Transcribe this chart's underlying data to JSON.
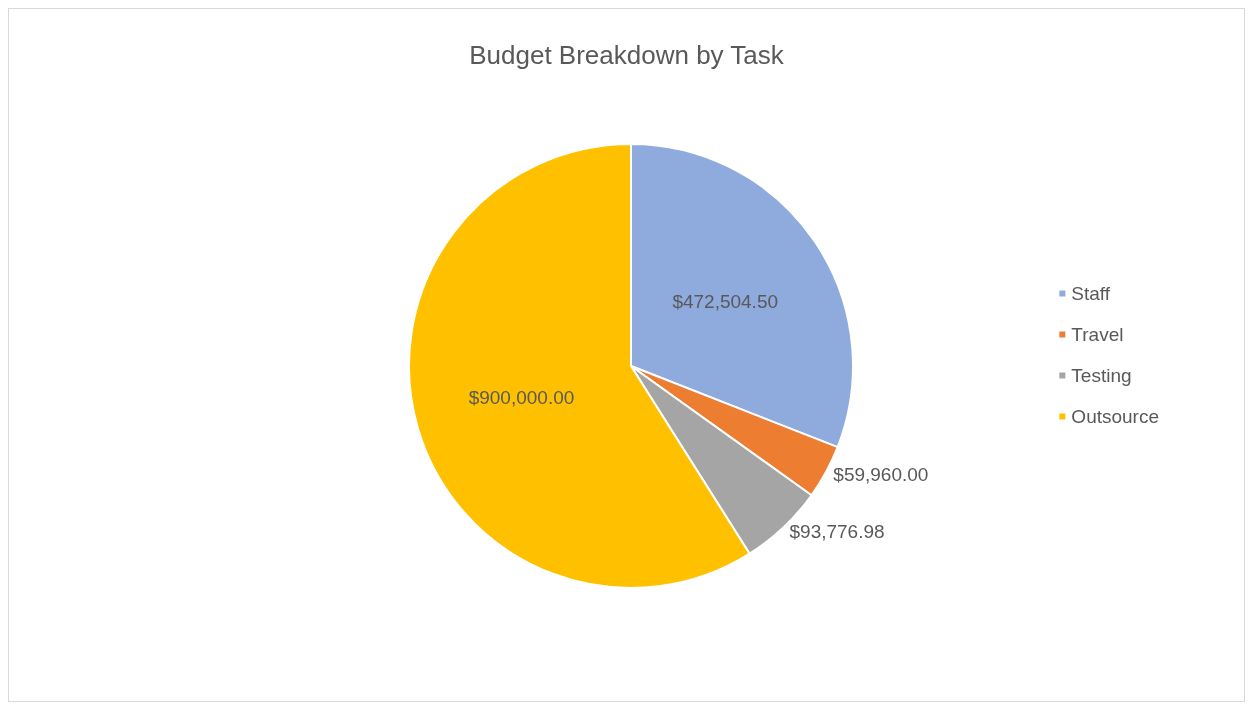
{
  "chart_data": {
    "type": "pie",
    "title": "Budget Breakdown by Task",
    "categories": [
      "Staff",
      "Travel",
      "Testing",
      "Outsource"
    ],
    "values": [
      472504.5,
      59960.0,
      93776.98,
      900000.0
    ],
    "value_labels": [
      "$472,504.50",
      "$59,960.00",
      "$93,776.98",
      "$900,000.00"
    ],
    "colors": [
      "#8faadc",
      "#ed7d31",
      "#a5a5a5",
      "#ffc000"
    ],
    "legend": "right"
  }
}
